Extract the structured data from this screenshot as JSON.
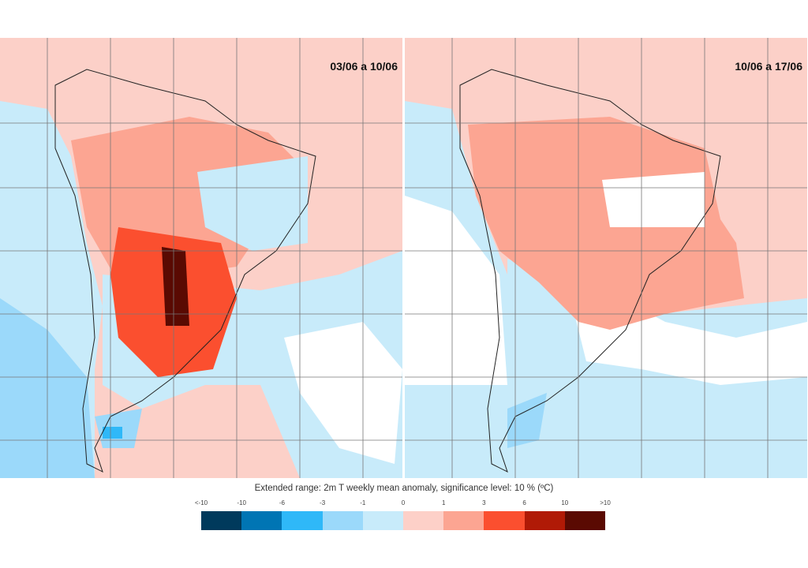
{
  "maps": [
    {
      "title": "03/06 a 10/06"
    },
    {
      "title": "10/06 a 17/06"
    }
  ],
  "legend": {
    "caption": "Extended range: 2m T weekly mean anomaly, significance level: 10 % (ºC)",
    "ticks": [
      "<-10",
      "-10",
      "-6",
      "-3",
      "-1",
      "0",
      "1",
      "3",
      "6",
      "10",
      ">10"
    ],
    "colors": [
      "#003a5c",
      "#0075b4",
      "#2fb8f8",
      "#9bd9fa",
      "#c8ebfa",
      "#fdd0c8",
      "#fca592",
      "#fb4f2f",
      "#b01a06",
      "#5a0a02"
    ]
  }
}
